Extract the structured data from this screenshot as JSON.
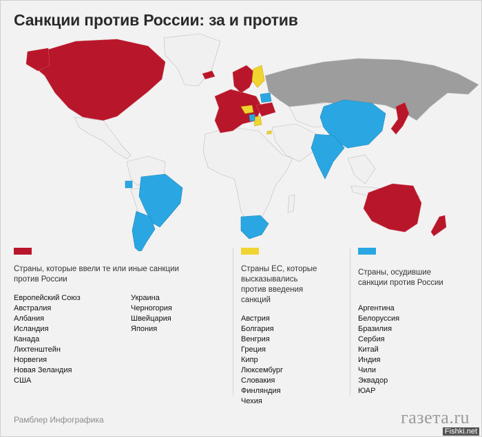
{
  "title": "Санкции против России: за и против",
  "colors": {
    "sanctions": "#b8162a",
    "opposed_eu": "#f0d430",
    "condemned": "#2aa7e2",
    "russia": "#9d9d9d",
    "neutral": "#f0f0f0"
  },
  "chart_data": {
    "type": "map",
    "categories": [
      {
        "key": "sanctions",
        "label": "Страны, которые ввели те или иные санкции против России",
        "color": "#b8162a",
        "countries": [
          "Европейский Союз",
          "Австралия",
          "Албания",
          "Исландия",
          "Канада",
          "Лихтенштейн",
          "Норвегия",
          "Новая Зеландия",
          "США",
          "Украина",
          "Черногория",
          "Швейцария",
          "Япония"
        ]
      },
      {
        "key": "opposed",
        "label": "Страны ЕС, которые высказывались против введения санкций",
        "color": "#f0d430",
        "countries": [
          "Австрия",
          "Болгария",
          "Венгрия",
          "Греция",
          "Кипр",
          "Люксембург",
          "Словакия",
          "Финляндия",
          "Чехия"
        ]
      },
      {
        "key": "condemned",
        "label": "Страны, осудившие санкции против России",
        "color": "#2aa7e2",
        "countries": [
          "Аргентина",
          "Белоруссия",
          "Бразилия",
          "Сербия",
          "Китай",
          "Индия",
          "Чили",
          "Эквадор",
          "ЮАР"
        ]
      }
    ]
  },
  "footer": {
    "source": "Рамблер Инфографика",
    "logo": "газета.ru",
    "watermark": "Fishki.net"
  }
}
